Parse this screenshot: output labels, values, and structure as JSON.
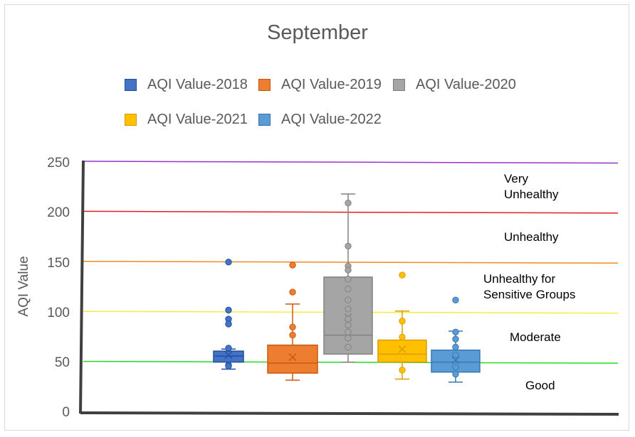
{
  "chart_data": {
    "type": "box",
    "title": "September",
    "xlabel": "",
    "ylabel": "AQI Value",
    "ylim": [
      0,
      250
    ],
    "yticks": [
      "0",
      "50",
      "100",
      "150",
      "200",
      "250"
    ],
    "grid": false,
    "legend_position": "top",
    "series": [
      {
        "name": "AQI Value-2018",
        "color": "#4472C4",
        "min": 43,
        "q1": 50,
        "median": 56,
        "q3": 61,
        "max": 63,
        "mean": 57,
        "outliers": [
          150,
          102,
          93,
          88,
          64,
          47,
          46
        ]
      },
      {
        "name": "AQI Value-2019",
        "color": "#ED7D31",
        "min": 32,
        "q1": 39,
        "median": 49,
        "q3": 67,
        "max": 108,
        "mean": 55,
        "outliers": [
          147,
          120,
          85,
          77
        ]
      },
      {
        "name": "AQI Value-2020",
        "color": "#A5A5A5",
        "min": 50,
        "q1": 58,
        "median": 77,
        "q3": 135,
        "max": 218,
        "mean": 95,
        "outliers": [
          209,
          166,
          146,
          142,
          133,
          123,
          112,
          103,
          93,
          87,
          80,
          74,
          65
        ]
      },
      {
        "name": "AQI Value-2021",
        "color": "#FFC000",
        "min": 33,
        "q1": 50,
        "median": 58,
        "q3": 72,
        "max": 101,
        "mean": 63,
        "outliers": [
          137,
          91,
          75,
          42
        ]
      },
      {
        "name": "AQI Value-2022",
        "color": "#5B9BD5",
        "min": 30,
        "q1": 40,
        "median": 50,
        "q3": 62,
        "max": 81,
        "mean": 52,
        "outliers": [
          112,
          80,
          73,
          65,
          57,
          45,
          38
        ]
      }
    ],
    "reference_lines": [
      {
        "value": 250,
        "color": "#9933CC"
      },
      {
        "value": 200,
        "color": "#E02020"
      },
      {
        "value": 150,
        "color": "#F08A24"
      },
      {
        "value": 100,
        "color": "#F2EE40"
      },
      {
        "value": 50,
        "color": "#22DD22"
      }
    ],
    "zones": [
      {
        "label_lines": [
          "Very",
          "Unhealthy"
        ]
      },
      {
        "label_lines": [
          "Unhealthy"
        ]
      },
      {
        "label_lines": [
          "Unhealthy for",
          "Sensitive Groups"
        ]
      },
      {
        "label_lines": [
          "Moderate"
        ]
      },
      {
        "label_lines": [
          "Good"
        ]
      }
    ]
  }
}
